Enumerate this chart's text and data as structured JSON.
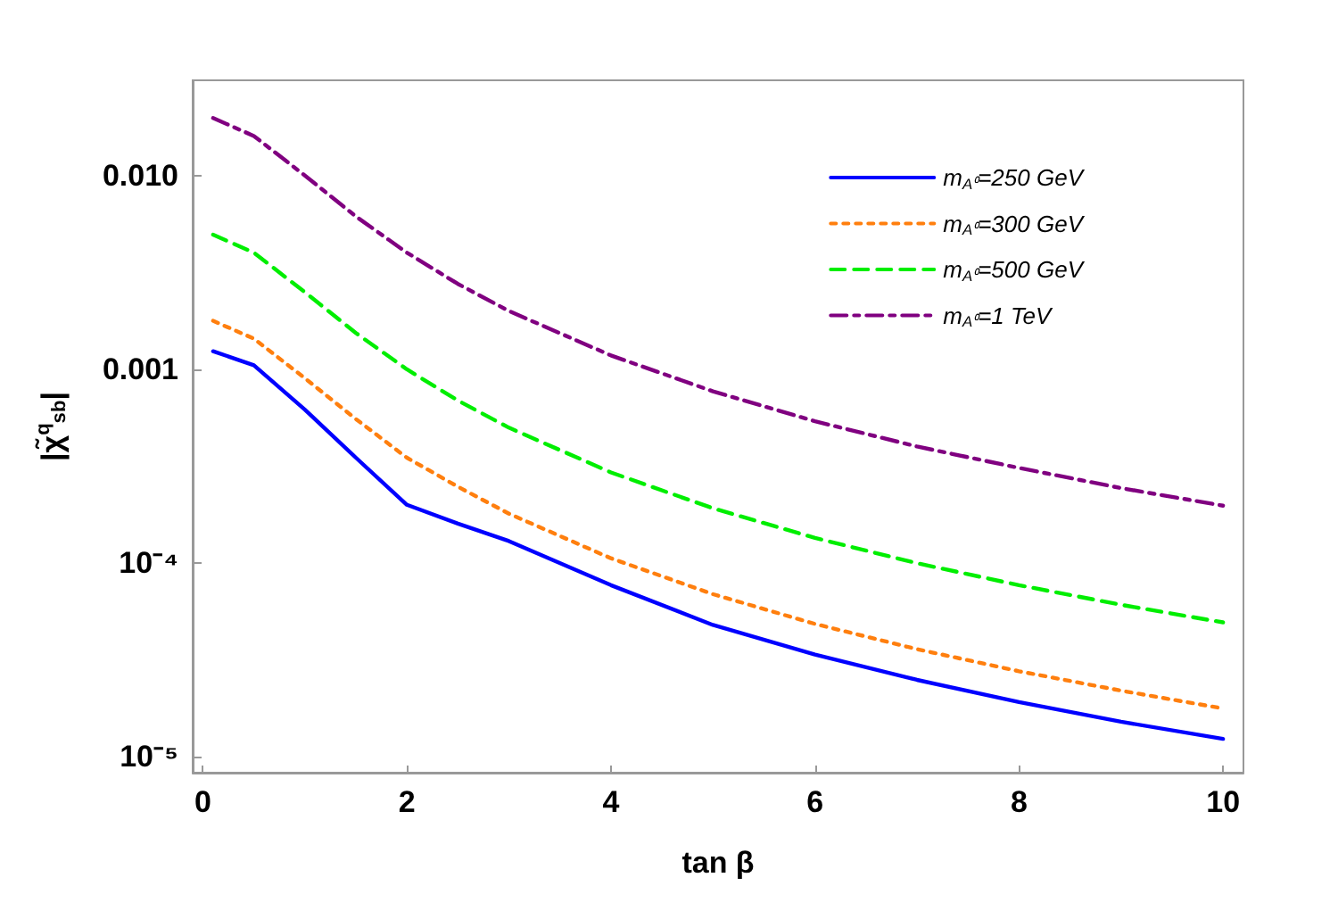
{
  "chart_data": {
    "type": "line",
    "xlabel": "tan β",
    "ylabel": "|χ̃$^{q}$$_{sb}$|",
    "log": "y",
    "grid": false,
    "legend": "top right",
    "marker": "none",
    "xlim": [
      -0.1,
      10.2
    ],
    "xticks": [
      0,
      2,
      4,
      6,
      8,
      10
    ],
    "ylim": [
      8.3e-06,
      0.031
    ],
    "yticks": [
      {
        "value": 1e-05,
        "label": "10⁻⁵"
      },
      {
        "value": 0.0001,
        "label": "10⁻⁴"
      },
      {
        "value": 0.001,
        "label": "0.001"
      },
      {
        "value": 0.01,
        "label": "0.010"
      }
    ],
    "x": [
      0.1,
      0.5,
      1,
      1.5,
      2,
      2.5,
      3,
      4,
      5,
      6,
      7,
      8,
      9,
      10
    ],
    "series": [
      {
        "name": "m$_{A⁰}$=250 GeV",
        "color": "#0000ff",
        "line_style": "solid",
        "values": [
          0.00124,
          0.00105,
          0.00062,
          0.00035,
          0.0002,
          0.00016,
          0.00013,
          7.7e-05,
          4.8e-05,
          3.38e-05,
          2.5e-05,
          1.92e-05,
          1.52e-05,
          1.24e-05
        ]
      },
      {
        "name": "m$_{A⁰}$=300 GeV",
        "color": "#ff7f0e",
        "line_style": "dotted",
        "values": [
          0.00178,
          0.00144,
          0.0009,
          0.000554,
          0.00035,
          0.000248,
          0.00018,
          0.000106,
          6.92e-05,
          4.86e-05,
          3.6e-05,
          2.77e-05,
          2.2e-05,
          1.78e-05
        ]
      },
      {
        "name": "m$_{A⁰}$=500 GeV",
        "color": "#00ee00",
        "line_style": "dashed",
        "values": [
          0.00495,
          0.004,
          0.0025,
          0.00154,
          0.001,
          0.00069,
          0.0005,
          0.000294,
          0.000192,
          0.000135,
          0.0001,
          7.7e-05,
          6.1e-05,
          4.95e-05
        ]
      },
      {
        "name": "m$_{A⁰}$=1 TeV",
        "color": "#800080",
        "line_style": "dashdot",
        "values": [
          0.0198,
          0.016,
          0.01,
          0.00615,
          0.004,
          0.00276,
          0.002,
          0.00118,
          0.00077,
          0.00054,
          0.0004,
          0.00031,
          0.000244,
          0.000198
        ]
      }
    ]
  }
}
